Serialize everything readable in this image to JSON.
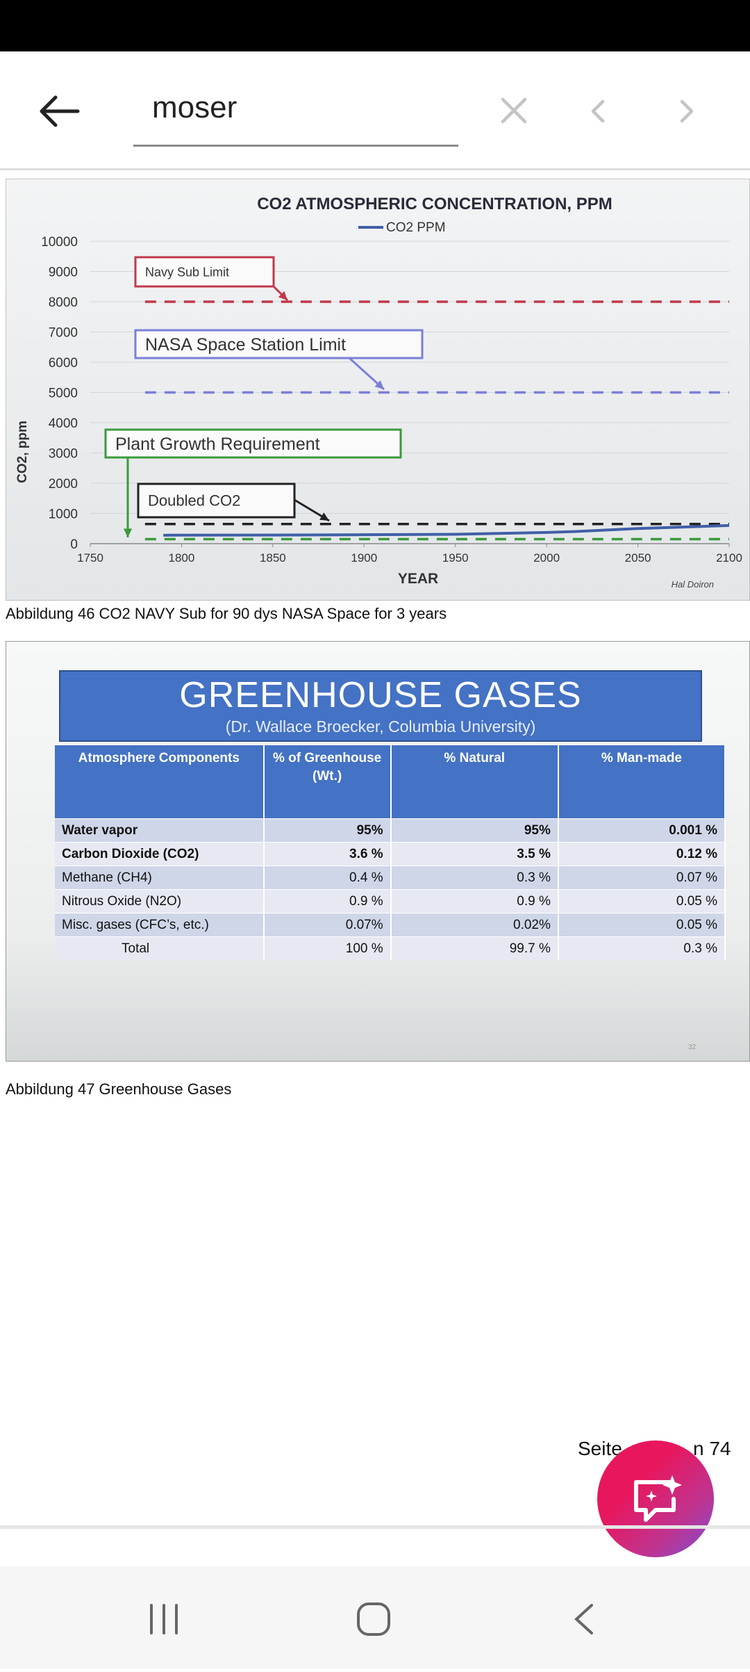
{
  "search": {
    "query": "moser"
  },
  "chart_data": {
    "type": "line",
    "title": "CO2  ATMOSPHERIC CONCENTRATION, PPM",
    "x_label": "YEAR",
    "y_label": "CO2, ppm",
    "attribution": "Hal Doiron",
    "x": [
      1790,
      1850,
      1900,
      1950,
      2000,
      2015,
      2050,
      2100
    ],
    "series": [
      {
        "name": "CO2 PPM",
        "color": "#3f5fa8",
        "values": [
          280,
          285,
          295,
          310,
          370,
          400,
          500,
          600
        ]
      }
    ],
    "reference_lines": [
      {
        "label": "Navy Sub Limit",
        "value": 8000,
        "color": "#c0394b"
      },
      {
        "label": "NASA Space Station Limit",
        "value": 5000,
        "color": "#7b7fd6"
      },
      {
        "label": "Plant Growth Requirement",
        "value": 150,
        "color": "#3a9a3a"
      },
      {
        "label": "Doubled CO2",
        "value": 650,
        "color": "#222222"
      }
    ],
    "xlim": [
      1750,
      2100
    ],
    "xticks": [
      1750,
      1800,
      1850,
      1900,
      1950,
      2000,
      2050,
      2100
    ],
    "ylim": [
      0,
      10000
    ],
    "yticks": [
      0,
      1000,
      2000,
      3000,
      4000,
      5000,
      6000,
      7000,
      8000,
      9000,
      10000
    ],
    "grid": true
  },
  "caption_1": "Abbildung 46 CO2 NAVY Sub for 90 dys NASA Space for 3 years",
  "slide": {
    "title": "GREENHOUSE GASES",
    "subtitle": "(Dr. Wallace Broecker, Columbia University)",
    "page_number": "32",
    "table": {
      "headers": [
        "Atmosphere Components",
        "% of Greenhouse (Wt.)",
        "% Natural",
        "% Man-made"
      ],
      "rows": [
        [
          "Water vapor",
          "95%",
          "95%",
          "0.001 %"
        ],
        [
          "Carbon Dioxide (CO2)",
          "3.6 %",
          "3.5 %",
          "0.12 %"
        ],
        [
          "Methane (CH4)",
          "0.4 %",
          "0.3 %",
          "0.07 %"
        ],
        [
          "Nitrous Oxide (N2O)",
          "0.9 %",
          "0.9 %",
          "0.05 %"
        ],
        [
          "Misc. gases (CFC’s, etc.)",
          "0.07%",
          "0.02%",
          "0.05 %"
        ],
        [
          "Total",
          "100 %",
          "99.7 %",
          "0.3 %"
        ]
      ]
    }
  },
  "caption_2": "Abbildung 47 Greenhouse Gases",
  "footer": {
    "left": "Seite",
    "right": "n 74"
  }
}
